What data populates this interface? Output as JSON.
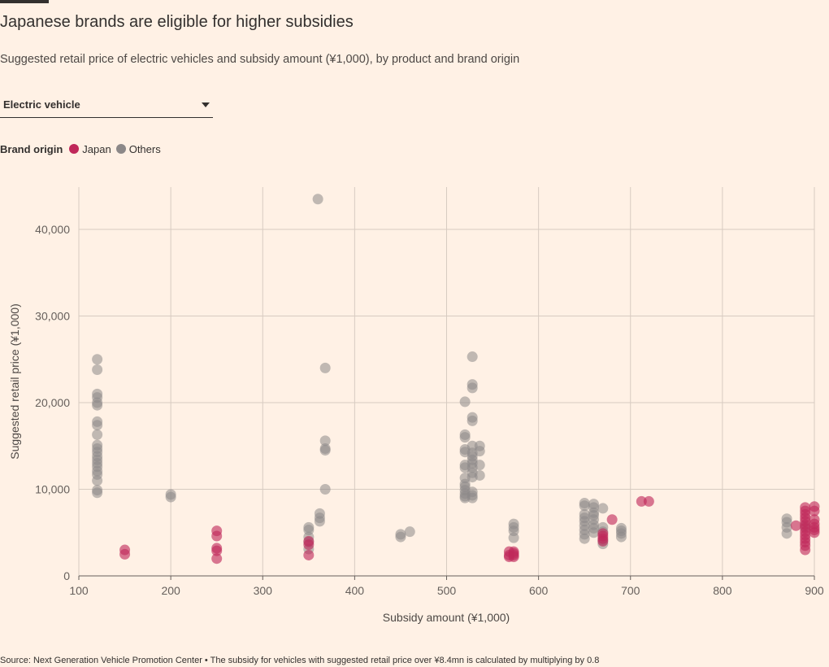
{
  "title": "Japanese brands are eligible for higher subsidies",
  "subtitle": "Suggested retail price of electric vehicles and subsidy amount (¥1,000), by product and brand origin",
  "dropdown": {
    "selected": "Electric vehicle"
  },
  "legend": {
    "title": "Brand origin",
    "items": [
      {
        "label": "Japan",
        "color": "#C0285A"
      },
      {
        "label": "Others",
        "color": "#8C8888"
      }
    ]
  },
  "source": "Source: Next Generation Vehicle Promotion Center • The subsidy for vehicles with suggested retail price over ¥8.4mn is calculated by multiplying by 0.8",
  "colors": {
    "japan": "#C0285A",
    "others": "#8C8888",
    "grid": "#D7CBC1",
    "axis": "#66605C",
    "background": "#FFF1E5"
  },
  "chart_data": {
    "type": "scatter",
    "xlabel": "Subsidy amount (¥1,000)",
    "ylabel": "Suggested retail price (¥1,000)",
    "xlim": [
      100,
      900
    ],
    "ylim": [
      0,
      45000
    ],
    "x_ticks": [
      100,
      200,
      300,
      400,
      500,
      600,
      700,
      800,
      900
    ],
    "y_ticks": [
      0,
      10000,
      20000,
      30000,
      40000
    ],
    "x_tick_labels": [
      "100",
      "200",
      "300",
      "400",
      "500",
      "600",
      "700",
      "800",
      "900"
    ],
    "y_tick_labels": [
      "0",
      "10,000",
      "20,000",
      "30,000",
      "40,000"
    ],
    "grid": true,
    "series": [
      {
        "name": "Others",
        "color": "#8C8888",
        "points": [
          [
            120,
            25000
          ],
          [
            120,
            23800
          ],
          [
            120,
            21000
          ],
          [
            120,
            20600
          ],
          [
            120,
            20000
          ],
          [
            120,
            19700
          ],
          [
            120,
            17800
          ],
          [
            120,
            17400
          ],
          [
            120,
            16300
          ],
          [
            120,
            15100
          ],
          [
            120,
            14700
          ],
          [
            120,
            14300
          ],
          [
            120,
            13800
          ],
          [
            120,
            13400
          ],
          [
            120,
            13000
          ],
          [
            120,
            12600
          ],
          [
            120,
            12100
          ],
          [
            120,
            11700
          ],
          [
            120,
            11000
          ],
          [
            120,
            9900
          ],
          [
            120,
            9600
          ],
          [
            200,
            9400
          ],
          [
            200,
            9100
          ],
          [
            350,
            5600
          ],
          [
            350,
            5300
          ],
          [
            350,
            4500
          ],
          [
            350,
            3900
          ],
          [
            350,
            3100
          ],
          [
            360,
            43500
          ],
          [
            362,
            7200
          ],
          [
            362,
            6700
          ],
          [
            362,
            6300
          ],
          [
            368,
            24000
          ],
          [
            368,
            15600
          ],
          [
            368,
            14700
          ],
          [
            368,
            14500
          ],
          [
            368,
            10000
          ],
          [
            450,
            4800
          ],
          [
            450,
            4500
          ],
          [
            460,
            5100
          ],
          [
            520,
            20100
          ],
          [
            520,
            16300
          ],
          [
            520,
            16000
          ],
          [
            520,
            14600
          ],
          [
            520,
            14300
          ],
          [
            520,
            12800
          ],
          [
            520,
            12500
          ],
          [
            520,
            11300
          ],
          [
            520,
            10600
          ],
          [
            520,
            10300
          ],
          [
            520,
            9900
          ],
          [
            520,
            9500
          ],
          [
            520,
            9200
          ],
          [
            520,
            9000
          ],
          [
            528,
            25300
          ],
          [
            528,
            22100
          ],
          [
            528,
            21700
          ],
          [
            528,
            18300
          ],
          [
            528,
            17900
          ],
          [
            528,
            15000
          ],
          [
            528,
            14200
          ],
          [
            528,
            13800
          ],
          [
            528,
            13400
          ],
          [
            528,
            13000
          ],
          [
            528,
            12500
          ],
          [
            528,
            11900
          ],
          [
            528,
            11400
          ],
          [
            528,
            9700
          ],
          [
            528,
            9300
          ],
          [
            528,
            9000
          ],
          [
            536,
            15000
          ],
          [
            536,
            14400
          ],
          [
            536,
            12800
          ],
          [
            536,
            11600
          ],
          [
            573,
            6000
          ],
          [
            573,
            5600
          ],
          [
            573,
            5200
          ],
          [
            573,
            4400
          ],
          [
            650,
            8400
          ],
          [
            650,
            8100
          ],
          [
            650,
            7100
          ],
          [
            650,
            6700
          ],
          [
            650,
            6300
          ],
          [
            650,
            5800
          ],
          [
            650,
            5300
          ],
          [
            650,
            4800
          ],
          [
            650,
            4300
          ],
          [
            660,
            8300
          ],
          [
            660,
            7900
          ],
          [
            660,
            7300
          ],
          [
            660,
            7000
          ],
          [
            660,
            6500
          ],
          [
            660,
            5900
          ],
          [
            660,
            5500
          ],
          [
            660,
            5000
          ],
          [
            670,
            7800
          ],
          [
            670,
            5600
          ],
          [
            670,
            5100
          ],
          [
            670,
            4100
          ],
          [
            670,
            3700
          ],
          [
            690,
            5500
          ],
          [
            690,
            5200
          ],
          [
            690,
            4900
          ],
          [
            690,
            4500
          ],
          [
            870,
            6600
          ],
          [
            870,
            6200
          ],
          [
            870,
            5600
          ],
          [
            870,
            4900
          ],
          [
            890,
            5700
          ]
        ]
      },
      {
        "name": "Japan",
        "color": "#C0285A",
        "points": [
          [
            150,
            3000
          ],
          [
            150,
            2500
          ],
          [
            250,
            5200
          ],
          [
            250,
            4600
          ],
          [
            250,
            3200
          ],
          [
            250,
            2900
          ],
          [
            250,
            2000
          ],
          [
            350,
            4000
          ],
          [
            350,
            3600
          ],
          [
            350,
            2400
          ],
          [
            568,
            2800
          ],
          [
            568,
            2400
          ],
          [
            568,
            2200
          ],
          [
            573,
            2800
          ],
          [
            573,
            2600
          ],
          [
            573,
            2400
          ],
          [
            573,
            2200
          ],
          [
            670,
            4900
          ],
          [
            670,
            4600
          ],
          [
            670,
            4300
          ],
          [
            670,
            4000
          ],
          [
            680,
            6500
          ],
          [
            712,
            8600
          ],
          [
            720,
            8600
          ],
          [
            880,
            5800
          ],
          [
            890,
            7900
          ],
          [
            890,
            7500
          ],
          [
            890,
            7100
          ],
          [
            890,
            6700
          ],
          [
            890,
            6300
          ],
          [
            890,
            5900
          ],
          [
            890,
            5500
          ],
          [
            890,
            5100
          ],
          [
            890,
            4700
          ],
          [
            890,
            4300
          ],
          [
            890,
            3900
          ],
          [
            890,
            3500
          ],
          [
            890,
            3000
          ],
          [
            900,
            8000
          ],
          [
            900,
            7500
          ],
          [
            900,
            6500
          ],
          [
            900,
            6000
          ],
          [
            900,
            5600
          ],
          [
            900,
            5300
          ],
          [
            900,
            5000
          ]
        ]
      }
    ]
  }
}
